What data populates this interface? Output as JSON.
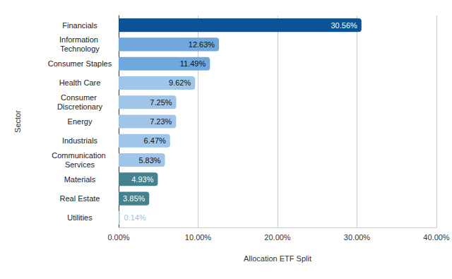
{
  "chart_data": {
    "type": "bar",
    "orientation": "horizontal",
    "categories": [
      "Financials",
      "Information Technology",
      "Consumer Staples",
      "Health Care",
      "Consumer Discretionary",
      "Energy",
      "Industrials",
      "Communication Services",
      "Materials",
      "Real Estate",
      "Utilities"
    ],
    "values": [
      30.56,
      12.63,
      11.49,
      9.62,
      7.25,
      7.23,
      6.47,
      5.83,
      4.93,
      3.85,
      0.14
    ],
    "value_labels": [
      "30.56%",
      "12.63%",
      "11.49%",
      "9.62%",
      "7.25%",
      "7.23%",
      "6.47%",
      "5.83%",
      "4.93%",
      "3.85%",
      "0.14%"
    ],
    "colors": [
      "#0b5394",
      "#6fa8dc",
      "#6fa8dc",
      "#9fc5e8",
      "#9fc5e8",
      "#9fc5e8",
      "#9fc5e8",
      "#9fc5e8",
      "#45818e",
      "#45818e",
      "#a2c4c9"
    ],
    "x_label": "Allocation ETF Split",
    "y_label": "Sector",
    "xlim": [
      0,
      40
    ],
    "xticks": [
      {
        "value": 0,
        "label": "0.00%"
      },
      {
        "value": 10,
        "label": "10.00%"
      },
      {
        "value": 20,
        "label": "20.00%"
      },
      {
        "value": 30,
        "label": "30.00%"
      },
      {
        "value": 40,
        "label": "40.00%"
      }
    ],
    "grid": true,
    "data_labels": true
  }
}
